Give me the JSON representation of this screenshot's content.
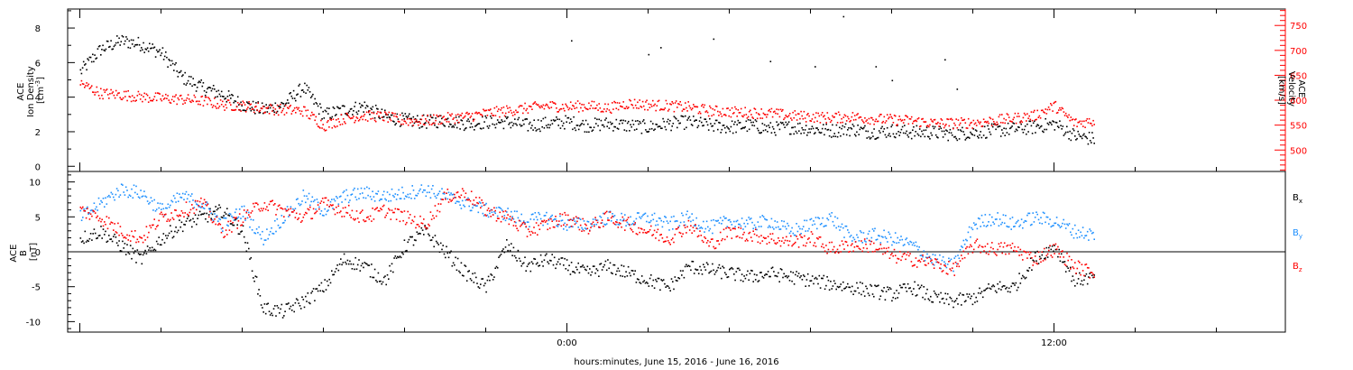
{
  "chart_data": [
    {
      "type": "scatter",
      "panel": "top",
      "ylabel_lines": [
        "ACE",
        "Ion Density"
      ],
      "ylabel_unit": "[cm",
      "ylabel_unit_sup": "-3",
      "ylabel_unit_end": "]",
      "ylim": [
        -0.3,
        9.1
      ],
      "yticks": [
        0,
        2,
        4,
        6,
        8
      ],
      "y2label_lines": [
        "ACE",
        "Velocity"
      ],
      "y2label_unit": "[km/s]",
      "y2lim": [
        457,
        783
      ],
      "y2ticks": [
        500,
        550,
        600,
        650,
        700,
        750
      ],
      "series": [
        {
          "name": "Ion Density",
          "axis": "left",
          "color": "#000000",
          "x": [
            -12.0,
            -11.5,
            -11.0,
            -10.5,
            -10.0,
            -9.5,
            -9.0,
            -8.5,
            -8.0,
            -7.5,
            -7.0,
            -6.5,
            -6.0,
            -5.5,
            -5.0,
            -4.5,
            -4.0,
            -3.5,
            -3.0,
            -2.5,
            -2.0,
            -1.5,
            -1.0,
            -0.5,
            0.0,
            0.5,
            1.0,
            1.5,
            2.0,
            2.5,
            3.0,
            3.5,
            4.0,
            4.5,
            5.0,
            5.5,
            6.0,
            6.5,
            7.0,
            7.5,
            8.0,
            8.5,
            9.0,
            9.5,
            10.0,
            10.5,
            11.0,
            11.5,
            12.0,
            12.5,
            13.0
          ],
          "y": [
            5.5,
            6.8,
            7.3,
            7.1,
            6.6,
            5.2,
            4.6,
            4.2,
            3.6,
            3.3,
            3.6,
            4.6,
            3.0,
            3.3,
            3.5,
            2.9,
            2.7,
            2.6,
            2.7,
            2.5,
            2.6,
            2.6,
            2.4,
            2.5,
            2.6,
            2.4,
            2.5,
            2.4,
            2.3,
            2.5,
            2.6,
            2.4,
            2.3,
            2.4,
            2.2,
            2.3,
            2.2,
            2.1,
            2.2,
            2.0,
            2.1,
            2.0,
            2.0,
            1.9,
            2.0,
            2.1,
            2.2,
            2.3,
            2.5,
            1.8,
            1.6
          ]
        },
        {
          "name": "Velocity",
          "axis": "right",
          "color": "#ff0000",
          "x": [
            -12.0,
            -11.5,
            -11.0,
            -10.5,
            -10.0,
            -9.5,
            -9.0,
            -8.5,
            -8.0,
            -7.5,
            -7.0,
            -6.5,
            -6.0,
            -5.5,
            -5.0,
            -4.5,
            -4.0,
            -3.5,
            -3.0,
            -2.5,
            -2.0,
            -1.5,
            -1.0,
            -0.5,
            0.0,
            0.5,
            1.0,
            1.5,
            2.0,
            2.5,
            3.0,
            3.5,
            4.0,
            4.5,
            5.0,
            5.5,
            6.0,
            6.5,
            7.0,
            7.5,
            8.0,
            8.5,
            9.0,
            9.5,
            10.0,
            10.5,
            11.0,
            11.5,
            12.0,
            12.5,
            13.0
          ],
          "y": [
            635,
            615,
            612,
            608,
            605,
            603,
            600,
            592,
            590,
            585,
            582,
            580,
            550,
            565,
            570,
            568,
            560,
            560,
            565,
            568,
            575,
            580,
            585,
            590,
            588,
            590,
            585,
            595,
            592,
            590,
            587,
            580,
            578,
            576,
            575,
            570,
            568,
            566,
            568,
            564,
            562,
            560,
            555,
            555,
            556,
            560,
            565,
            570,
            590,
            555,
            560
          ]
        },
        {
          "name": "Ion Density (isolated)",
          "axis": "left",
          "color": "#000000",
          "x": [
            0.1,
            2.0,
            2.3,
            3.6,
            5.0,
            6.1,
            6.8,
            7.6,
            8.0,
            9.3,
            9.6
          ],
          "y": [
            7.3,
            6.5,
            6.9,
            7.4,
            6.1,
            5.8,
            8.7,
            5.8,
            5.0,
            6.2,
            4.5
          ]
        }
      ]
    },
    {
      "type": "scatter",
      "panel": "bottom",
      "ylabel_lines": [
        "ACE",
        "B"
      ],
      "ylabel_unit": "[nT]",
      "ylim": [
        -11.5,
        11.5
      ],
      "yticks": [
        -10,
        -5,
        0,
        5,
        10
      ],
      "zero_line": true,
      "legend_placement": "right",
      "series": [
        {
          "name": "B",
          "name_sub": "x",
          "color": "#000000",
          "x": [
            -12.0,
            -11.5,
            -11.0,
            -10.5,
            -10.0,
            -9.5,
            -9.0,
            -8.5,
            -8.0,
            -7.5,
            -7.0,
            -6.5,
            -6.0,
            -5.5,
            -5.0,
            -4.5,
            -4.0,
            -3.5,
            -3.0,
            -2.5,
            -2.0,
            -1.5,
            -1.0,
            -0.5,
            0.0,
            0.5,
            1.0,
            1.5,
            2.0,
            2.5,
            3.0,
            3.5,
            4.0,
            4.5,
            5.0,
            5.5,
            6.0,
            6.5,
            7.0,
            7.5,
            8.0,
            8.5,
            9.0,
            9.5,
            10.0,
            10.5,
            11.0,
            11.5,
            12.0,
            12.5,
            13.0
          ],
          "y": [
            2.0,
            3.0,
            1.0,
            -1.0,
            2.0,
            4.0,
            5.0,
            6.0,
            3.0,
            -8.0,
            -8.5,
            -7.0,
            -5.0,
            -1.0,
            -2.0,
            -4.0,
            1.0,
            3.0,
            0.0,
            -3.0,
            -5.0,
            1.0,
            -2.0,
            -1.0,
            -2.0,
            -3.0,
            -2.0,
            -3.0,
            -4.0,
            -5.0,
            -2.0,
            -2.5,
            -3.0,
            -3.5,
            -3.0,
            -3.5,
            -4.0,
            -4.5,
            -5.0,
            -5.5,
            -6.0,
            -5.0,
            -6.5,
            -7.0,
            -6.5,
            -5.0,
            -5.0,
            -1.0,
            1.0,
            -4.0,
            -3.5
          ]
        },
        {
          "name": "B",
          "name_sub": "y",
          "color": "#1e90ff",
          "x": [
            -12.0,
            -11.5,
            -11.0,
            -10.5,
            -10.0,
            -9.5,
            -9.0,
            -8.5,
            -8.0,
            -7.5,
            -7.0,
            -6.5,
            -6.0,
            -5.5,
            -5.0,
            -4.5,
            -4.0,
            -3.5,
            -3.0,
            -2.5,
            -2.0,
            -1.5,
            -1.0,
            -0.5,
            0.0,
            0.5,
            1.0,
            1.5,
            2.0,
            2.5,
            3.0,
            3.5,
            4.0,
            4.5,
            5.0,
            5.5,
            6.0,
            6.5,
            7.0,
            7.5,
            8.0,
            8.5,
            9.0,
            9.5,
            10.0,
            10.5,
            11.0,
            11.5,
            12.0,
            12.5,
            13.0
          ],
          "y": [
            5.0,
            7.0,
            9.0,
            8.5,
            6.0,
            8.0,
            7.0,
            4.0,
            6.0,
            2.0,
            5.0,
            8.0,
            6.0,
            8.0,
            8.5,
            8.0,
            8.5,
            9.0,
            8.0,
            7.0,
            6.0,
            5.5,
            4.5,
            5.0,
            4.0,
            4.0,
            5.0,
            4.5,
            5.0,
            4.0,
            5.0,
            3.5,
            4.5,
            4.0,
            4.5,
            3.0,
            4.0,
            5.0,
            2.0,
            2.5,
            2.0,
            1.0,
            -1.0,
            -2.0,
            4.0,
            5.0,
            4.0,
            5.0,
            4.5,
            3.0,
            2.5
          ]
        },
        {
          "name": "B",
          "name_sub": "z",
          "color": "#ff0000",
          "x": [
            -12.0,
            -11.5,
            -11.0,
            -10.5,
            -10.0,
            -9.5,
            -9.0,
            -8.5,
            -8.0,
            -7.5,
            -7.0,
            -6.5,
            -6.0,
            -5.5,
            -5.0,
            -4.5,
            -4.0,
            -3.5,
            -3.0,
            -2.5,
            -2.0,
            -1.5,
            -1.0,
            -0.5,
            0.0,
            0.5,
            1.0,
            1.5,
            2.0,
            2.5,
            3.0,
            3.5,
            4.0,
            4.5,
            5.0,
            5.5,
            6.0,
            6.5,
            7.0,
            7.5,
            8.0,
            8.5,
            9.0,
            9.5,
            10.0,
            10.5,
            11.0,
            11.5,
            12.0,
            12.5,
            13.0
          ],
          "y": [
            6.0,
            5.0,
            3.0,
            2.0,
            5.0,
            6.0,
            7.0,
            3.0,
            5.0,
            7.0,
            6.0,
            5.0,
            7.0,
            6.0,
            5.0,
            6.0,
            5.0,
            4.0,
            8.0,
            8.5,
            6.0,
            5.0,
            3.0,
            4.0,
            5.0,
            3.5,
            5.0,
            4.0,
            3.0,
            2.0,
            4.0,
            1.0,
            3.0,
            2.5,
            2.0,
            1.5,
            2.0,
            0.5,
            1.0,
            1.0,
            -0.5,
            -1.0,
            -1.5,
            -2.5,
            1.0,
            0.5,
            0.5,
            -1.0,
            0.5,
            -2.0,
            -3.0
          ]
        }
      ]
    }
  ],
  "x_axis": {
    "xlim": [
      -12.3,
      17.7
    ],
    "tick_labels": [
      {
        "label": "0:00",
        "x": 0
      },
      {
        "label": "12:00",
        "x": 12
      }
    ],
    "minor_step": 2,
    "xlabel": "hours:minutes, June 15, 2016 - June 16, 2016"
  }
}
